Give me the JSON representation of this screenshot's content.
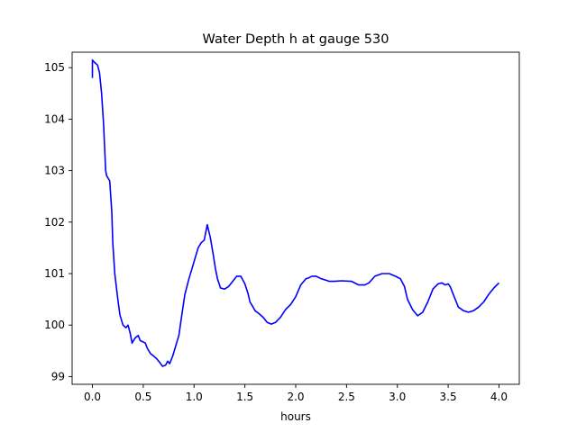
{
  "chart_data": {
    "type": "line",
    "title": "Water Depth h at gauge 530",
    "xlabel": "hours",
    "ylabel": "",
    "xlim": [
      -0.2,
      4.2
    ],
    "ylim": [
      98.85,
      105.3
    ],
    "xticks": [
      0.0,
      0.5,
      1.0,
      1.5,
      2.0,
      2.5,
      3.0,
      3.5,
      4.0
    ],
    "xtick_labels": [
      "0.0",
      "0.5",
      "1.0",
      "1.5",
      "2.0",
      "2.5",
      "3.0",
      "3.5",
      "4.0"
    ],
    "yticks": [
      99,
      100,
      101,
      102,
      103,
      104,
      105
    ],
    "ytick_labels": [
      "99",
      "100",
      "101",
      "102",
      "103",
      "104",
      "105"
    ],
    "grid": false,
    "series": [
      {
        "color": "#0000ff",
        "x": [
          0.0,
          0.0,
          0.02,
          0.05,
          0.07,
          0.09,
          0.11,
          0.13,
          0.14,
          0.17,
          0.19,
          0.2,
          0.22,
          0.25,
          0.27,
          0.3,
          0.33,
          0.35,
          0.37,
          0.39,
          0.42,
          0.45,
          0.47,
          0.49,
          0.52,
          0.54,
          0.57,
          0.6,
          0.63,
          0.66,
          0.69,
          0.72,
          0.74,
          0.76,
          0.79,
          0.82,
          0.85,
          0.88,
          0.91,
          0.95,
          0.98,
          1.01,
          1.04,
          1.07,
          1.1,
          1.13,
          1.16,
          1.19,
          1.21,
          1.23,
          1.26,
          1.3,
          1.34,
          1.38,
          1.42,
          1.46,
          1.5,
          1.53,
          1.55,
          1.58,
          1.6,
          1.64,
          1.68,
          1.72,
          1.76,
          1.8,
          1.85,
          1.9,
          1.95,
          2.0,
          2.05,
          2.1,
          2.13,
          2.16,
          2.2,
          2.25,
          2.3,
          2.33,
          2.38,
          2.45,
          2.55,
          2.62,
          2.68,
          2.72,
          2.78,
          2.85,
          2.92,
          2.98,
          3.03,
          3.07,
          3.1,
          3.15,
          3.2,
          3.25,
          3.3,
          3.35,
          3.4,
          3.44,
          3.47,
          3.5,
          3.52,
          3.55,
          3.58,
          3.6,
          3.65,
          3.7,
          3.75,
          3.8,
          3.85,
          3.9,
          3.95,
          4.0
        ],
        "y": [
          104.8,
          105.15,
          105.1,
          105.05,
          104.9,
          104.5,
          103.9,
          103.0,
          102.9,
          102.8,
          102.2,
          101.6,
          101.0,
          100.5,
          100.2,
          100.0,
          99.95,
          100.0,
          99.85,
          99.65,
          99.75,
          99.8,
          99.7,
          99.68,
          99.65,
          99.55,
          99.45,
          99.4,
          99.35,
          99.28,
          99.2,
          99.22,
          99.3,
          99.25,
          99.4,
          99.6,
          99.8,
          100.2,
          100.6,
          100.9,
          101.1,
          101.3,
          101.5,
          101.6,
          101.65,
          101.95,
          101.7,
          101.35,
          101.1,
          100.9,
          100.72,
          100.7,
          100.75,
          100.85,
          100.95,
          100.95,
          100.8,
          100.62,
          100.45,
          100.35,
          100.28,
          100.22,
          100.15,
          100.05,
          100.02,
          100.05,
          100.15,
          100.3,
          100.4,
          100.55,
          100.78,
          100.9,
          100.92,
          100.95,
          100.95,
          100.9,
          100.87,
          100.85,
          100.85,
          100.86,
          100.85,
          100.78,
          100.78,
          100.82,
          100.95,
          101.0,
          101.0,
          100.95,
          100.9,
          100.75,
          100.5,
          100.3,
          100.18,
          100.25,
          100.45,
          100.7,
          100.8,
          100.82,
          100.78,
          100.8,
          100.75,
          100.6,
          100.45,
          100.35,
          100.28,
          100.25,
          100.28,
          100.35,
          100.45,
          100.6,
          100.72,
          100.82
        ]
      }
    ]
  }
}
